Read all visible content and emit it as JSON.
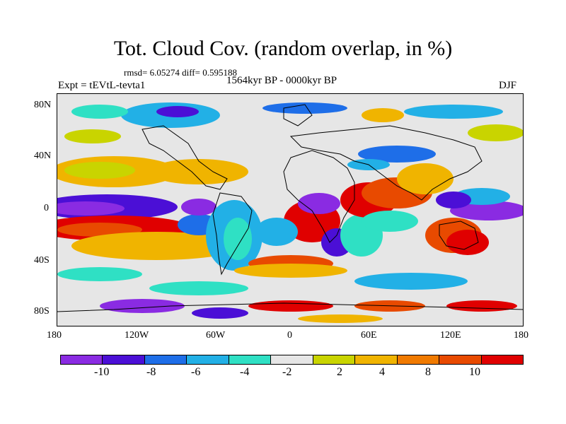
{
  "title": "Tot. Cloud Cov. (random overlap, in %)",
  "stats": "rmsd= 6.05274 diff= 0.595188",
  "expt": "Expt = tEVtL-tevta1",
  "period": "1564kyr BP - 0000kyr BP",
  "season": "DJF",
  "map": {
    "lat_ticks": [
      "80N",
      "40N",
      "0",
      "40S",
      "80S"
    ],
    "lon_ticks": [
      "180",
      "120W",
      "60W",
      "0",
      "60E",
      "120E",
      "180"
    ]
  },
  "colorbar": {
    "labels": [
      "-10",
      "-8",
      "-6",
      "-4",
      "-2",
      "2",
      "4",
      "8",
      "10"
    ],
    "colors": [
      "#8a2be2",
      "#4b0fd6",
      "#1e6ee8",
      "#22b0e6",
      "#2fe0c4",
      "#e6e6e6",
      "#c9d400",
      "#f0b400",
      "#f07a00",
      "#e84a00",
      "#e00000"
    ]
  }
}
